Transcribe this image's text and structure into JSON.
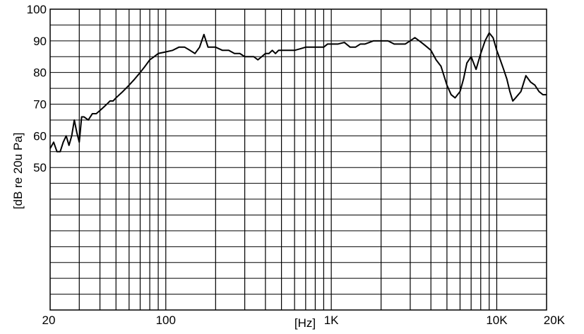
{
  "chart_data": {
    "type": "line",
    "title": "",
    "xlabel": "[Hz]",
    "ylabel": "[dB re 20u Pa]",
    "xscale": "log",
    "xlim": [
      20,
      20000
    ],
    "ylim": [
      5,
      100
    ],
    "grid": true,
    "legend": "none",
    "line_color": "#000000",
    "x_tick_labels": [
      {
        "value": 20,
        "label": "20"
      },
      {
        "value": 100,
        "label": "100"
      },
      {
        "value": 1000,
        "label": "1K"
      },
      {
        "value": 10000,
        "label": "10K"
      },
      {
        "value": 20000,
        "label": "20K"
      }
    ],
    "y_tick_labels": [
      {
        "value": 100,
        "label": "100"
      },
      {
        "value": 90,
        "label": "90"
      },
      {
        "value": 80,
        "label": "80"
      },
      {
        "value": 70,
        "label": "70"
      },
      {
        "value": 60,
        "label": "60"
      },
      {
        "value": 50,
        "label": "50"
      }
    ],
    "series": [
      {
        "x": [
          20,
          21,
          22,
          23,
          24,
          25,
          26,
          27,
          28,
          29,
          30,
          31,
          32,
          34,
          36,
          38,
          40,
          42,
          44,
          46,
          48,
          50,
          55,
          60,
          65,
          70,
          75,
          80,
          85,
          90,
          100,
          110,
          120,
          130,
          140,
          150,
          160,
          170,
          180,
          190,
          200,
          220,
          240,
          260,
          280,
          300,
          320,
          340,
          360,
          380,
          400,
          420,
          440,
          460,
          480,
          500,
          550,
          600,
          650,
          700,
          750,
          800,
          850,
          900,
          950,
          1000,
          1100,
          1200,
          1300,
          1400,
          1500,
          1600,
          1700,
          1800,
          1900,
          2000,
          2200,
          2400,
          2600,
          2800,
          3000,
          3200,
          3400,
          3600,
          3800,
          4000,
          4300,
          4600,
          5000,
          5300,
          5600,
          6000,
          6300,
          6600,
          7000,
          7500,
          8000,
          8500,
          9000,
          9500,
          10000,
          10500,
          11000,
          11500,
          12000,
          12500,
          13000,
          14000,
          15000,
          16000,
          17000,
          18000,
          19000,
          20000
        ],
        "y": [
          56,
          58,
          55,
          55,
          58,
          60,
          57,
          60,
          65,
          61,
          58,
          66,
          66,
          65,
          67,
          67,
          68,
          69,
          70,
          71,
          71,
          72,
          74,
          76,
          78,
          80,
          82,
          84,
          85,
          86,
          86.5,
          87,
          88,
          88,
          87,
          86,
          88,
          92,
          88,
          88,
          88,
          87,
          87,
          86,
          86,
          85,
          85,
          85,
          84,
          85,
          86,
          86,
          87,
          86,
          87,
          87,
          87,
          87,
          87.5,
          88,
          88,
          88,
          88,
          88,
          89,
          89,
          89,
          89.5,
          88,
          88,
          89,
          89,
          89.5,
          90,
          90,
          90,
          90,
          89,
          89,
          89,
          90,
          91,
          90,
          89,
          88,
          87,
          84,
          82,
          76,
          73,
          72,
          74,
          78,
          83,
          85,
          81,
          86,
          90,
          92.5,
          91,
          87,
          84,
          81,
          78,
          74,
          71,
          72,
          74,
          79,
          77,
          76,
          74,
          73,
          73
        ]
      }
    ]
  }
}
